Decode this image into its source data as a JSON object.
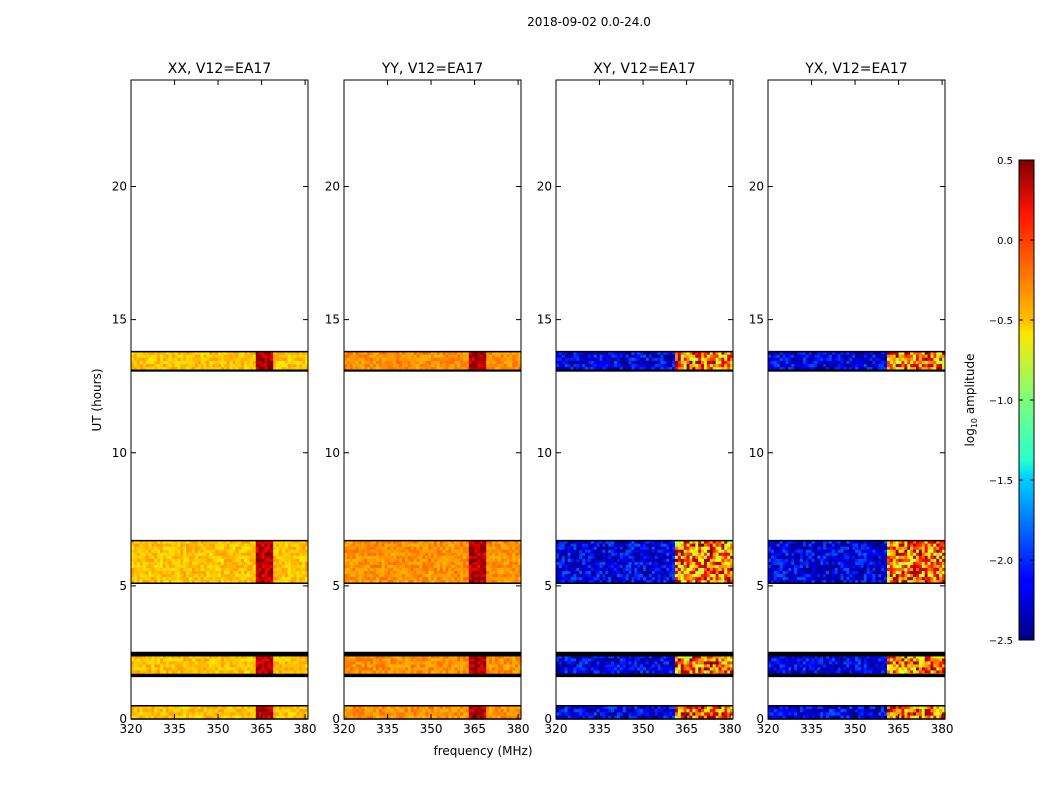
{
  "suptitle": "2018-09-02 0.0-24.0",
  "xlabel": "frequency (MHz)",
  "ylabel": "UT (hours)",
  "colorbar": {
    "label": "log",
    "label_sub": "10",
    "label_suffix": " amplitude",
    "range": [
      -2.5,
      0.5
    ],
    "ticks": [
      "0.5",
      "0.0",
      "−0.5",
      "−1.0",
      "−1.5",
      "−2.0",
      "−2.5"
    ],
    "tick_values": [
      0.5,
      0.0,
      -0.5,
      -1.0,
      -1.5,
      -2.0,
      -2.5
    ]
  },
  "chart_data": {
    "type": "heatmap",
    "x_range": [
      320,
      381
    ],
    "y_range": [
      0,
      24
    ],
    "x_ticks": [
      "320",
      "335",
      "350",
      "365",
      "380"
    ],
    "x_tick_values": [
      320,
      335,
      350,
      365,
      380
    ],
    "y_ticks": [
      "0",
      "5",
      "10",
      "15",
      "20"
    ],
    "y_tick_values": [
      0,
      5,
      10,
      15,
      20
    ],
    "data_time_ranges_hours": [
      [
        0.0,
        0.5
      ],
      [
        1.6,
        2.5
      ],
      [
        5.1,
        6.7
      ],
      [
        13.1,
        13.8
      ]
    ],
    "flagged_time_ranges_hours": [
      [
        2.35,
        2.5
      ],
      [
        1.6,
        1.7
      ],
      [
        13.05,
        13.12
      ]
    ],
    "panels": [
      {
        "title": "XX, V12=EA17",
        "baseline_log_amp": -0.45,
        "hot_band_mhz": [
          363,
          369
        ],
        "hot_log_amp": 0.35
      },
      {
        "title": "YY, V12=EA17",
        "baseline_log_amp": -0.3,
        "hot_band_mhz": [
          363,
          369
        ],
        "hot_log_amp": 0.35
      },
      {
        "title": "XY, V12=EA17",
        "baseline_log_amp": -2.2,
        "hot_band_mhz": [
          361,
          381
        ],
        "hot_log_amp": -0.2
      },
      {
        "title": "YX, V12=EA17",
        "baseline_log_amp": -2.2,
        "hot_band_mhz": [
          361,
          381
        ],
        "hot_log_amp": -0.2
      }
    ]
  }
}
